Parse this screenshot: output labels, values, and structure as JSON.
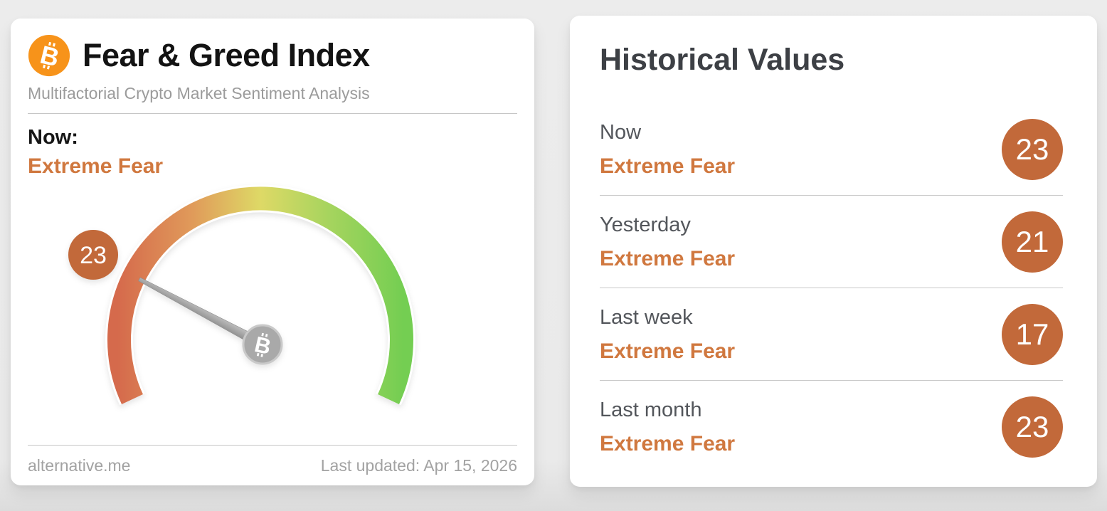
{
  "colors": {
    "orange_text": "#d0783f",
    "badge": "#c2693a",
    "bitcoin_orange": "#f7931a",
    "heading": "#3d4045",
    "label": "#53565b",
    "arc_gradient": [
      "#d56a4c",
      "#e09a5a",
      "#ded966",
      "#a6d45e",
      "#74ce52"
    ]
  },
  "gauge_card": {
    "title": "Fear & Greed Index",
    "subtitle": "Multifactorial Crypto Market Sentiment Analysis",
    "now_label": "Now:",
    "now_classification": "Extreme Fear",
    "gauge": {
      "value": 23,
      "value_text": "23",
      "min": 0,
      "max": 100
    },
    "footer": {
      "source": "alternative.me",
      "last_updated": "Last updated: Apr 15, 2026"
    }
  },
  "history_card": {
    "title": "Historical Values",
    "rows": [
      {
        "label": "Now",
        "classification": "Extreme Fear",
        "value": "23"
      },
      {
        "label": "Yesterday",
        "classification": "Extreme Fear",
        "value": "21"
      },
      {
        "label": "Last week",
        "classification": "Extreme Fear",
        "value": "17"
      },
      {
        "label": "Last month",
        "classification": "Extreme Fear",
        "value": "23"
      }
    ]
  },
  "chart_data": {
    "type": "gauge",
    "title": "Fear & Greed Index",
    "subtitle": "Multifactorial Crypto Market Sentiment Analysis",
    "value": 23,
    "classification": "Extreme Fear",
    "range": [
      0,
      100
    ],
    "scale_colors_low_to_high": [
      "#d56a4c",
      "#e09a5a",
      "#ded966",
      "#a6d45e",
      "#74ce52"
    ],
    "last_updated": "Apr 15, 2026",
    "source": "alternative.me",
    "historical": [
      {
        "period": "Now",
        "classification": "Extreme Fear",
        "value": 23
      },
      {
        "period": "Yesterday",
        "classification": "Extreme Fear",
        "value": 21
      },
      {
        "period": "Last week",
        "classification": "Extreme Fear",
        "value": 17
      },
      {
        "period": "Last month",
        "classification": "Extreme Fear",
        "value": 23
      }
    ]
  }
}
